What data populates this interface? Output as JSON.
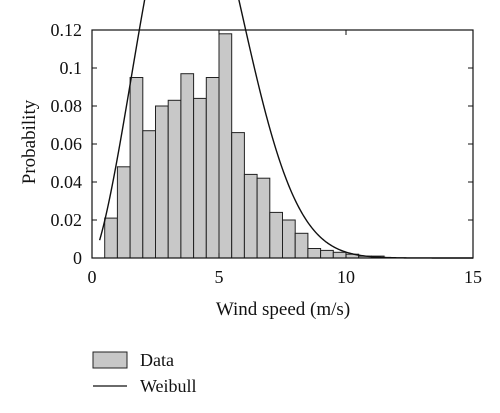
{
  "chart_data": {
    "type": "bar",
    "xlabel": "Wind speed (m/s)",
    "ylabel": "Probability",
    "xlim": [
      0,
      15
    ],
    "ylim": [
      0,
      0.12
    ],
    "x_ticks": [
      "0",
      "5",
      "10",
      "15"
    ],
    "y_ticks": [
      "0",
      "0.02",
      "0.04",
      "0.06",
      "0.08",
      "0.1",
      "0.12"
    ],
    "grid": false,
    "legend_position": "bottom-left, below plot",
    "bar_width": 0.5,
    "series": [
      {
        "name": "Data",
        "type": "bar",
        "color": "#c8c8c8",
        "x": [
          0.75,
          1.25,
          1.75,
          2.25,
          2.75,
          3.25,
          3.75,
          4.25,
          4.75,
          5.25,
          5.75,
          6.25,
          6.75,
          7.25,
          7.75,
          8.25,
          8.75,
          9.25,
          9.75,
          10.25,
          10.75,
          11.25
        ],
        "values": [
          0.021,
          0.048,
          0.095,
          0.067,
          0.08,
          0.083,
          0.097,
          0.084,
          0.095,
          0.118,
          0.066,
          0.044,
          0.042,
          0.024,
          0.02,
          0.013,
          0.005,
          0.004,
          0.003,
          0.002,
          0.001,
          0.001
        ]
      },
      {
        "name": "Weibull",
        "type": "line",
        "color": "#111111",
        "distribution": "Weibull",
        "shape": 2.45,
        "scale": 4.75
      }
    ]
  }
}
